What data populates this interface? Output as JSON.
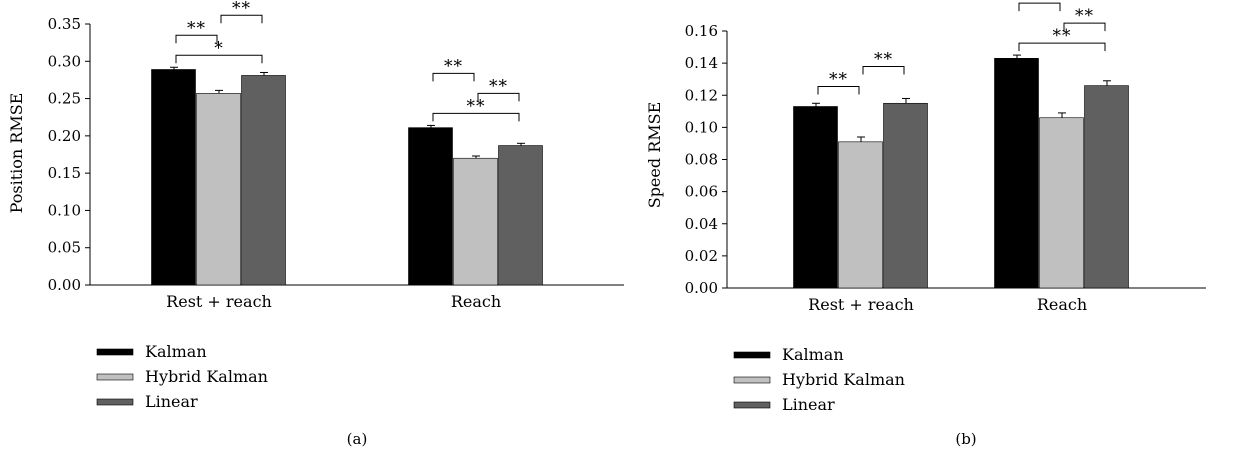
{
  "chart_data": [
    {
      "type": "bar",
      "panel_label": "(a)",
      "ylabel": "Position RMSE",
      "ylim": [
        0,
        0.35
      ],
      "yticks": [
        "0.00",
        "0.05",
        "0.10",
        "0.15",
        "0.20",
        "0.25",
        "0.30",
        "0.35"
      ],
      "categories": [
        "Rest + reach",
        "Reach"
      ],
      "series": [
        {
          "name": "Kalman",
          "color": "#000000",
          "values": [
            0.289,
            0.211
          ],
          "errors": [
            0.003,
            0.003
          ]
        },
        {
          "name": "Hybrid Kalman",
          "color": "#c0c0c0",
          "values": [
            0.257,
            0.17
          ],
          "errors": [
            0.004,
            0.003
          ]
        },
        {
          "name": "Linear",
          "color": "#606060",
          "values": [
            0.281,
            0.187
          ],
          "errors": [
            0.004,
            0.003
          ]
        }
      ],
      "significance": [
        {
          "category": 0,
          "from": 0,
          "to": 2,
          "label": "*"
        },
        {
          "category": 0,
          "from": 0,
          "to": 1,
          "label": "**"
        },
        {
          "category": 0,
          "from": 1,
          "to": 2,
          "label": "**"
        },
        {
          "category": 1,
          "from": 0,
          "to": 2,
          "label": "**"
        },
        {
          "category": 1,
          "from": 0,
          "to": 1,
          "label": "**"
        },
        {
          "category": 1,
          "from": 1,
          "to": 2,
          "label": "**"
        }
      ]
    },
    {
      "type": "bar",
      "panel_label": "(b)",
      "ylabel": "Speed RMSE",
      "ylim": [
        0,
        0.16
      ],
      "yticks": [
        "0.00",
        "0.02",
        "0.04",
        "0.06",
        "0.08",
        "0.10",
        "0.12",
        "0.14",
        "0.16"
      ],
      "categories": [
        "Rest + reach",
        "Reach"
      ],
      "series": [
        {
          "name": "Kalman",
          "color": "#000000",
          "values": [
            0.113,
            0.143
          ],
          "errors": [
            0.002,
            0.002
          ]
        },
        {
          "name": "Hybrid Kalman",
          "color": "#c0c0c0",
          "values": [
            0.091,
            0.106
          ],
          "errors": [
            0.003,
            0.003
          ]
        },
        {
          "name": "Linear",
          "color": "#606060",
          "values": [
            0.115,
            0.126
          ],
          "errors": [
            0.003,
            0.003
          ]
        }
      ],
      "significance": [
        {
          "category": 0,
          "from": 0,
          "to": 1,
          "label": "**"
        },
        {
          "category": 0,
          "from": 1,
          "to": 2,
          "label": "**"
        },
        {
          "category": 1,
          "from": 0,
          "to": 2,
          "label": "**"
        },
        {
          "category": 1,
          "from": 0,
          "to": 1,
          "label": "**"
        },
        {
          "category": 1,
          "from": 1,
          "to": 2,
          "label": "**"
        }
      ]
    }
  ]
}
